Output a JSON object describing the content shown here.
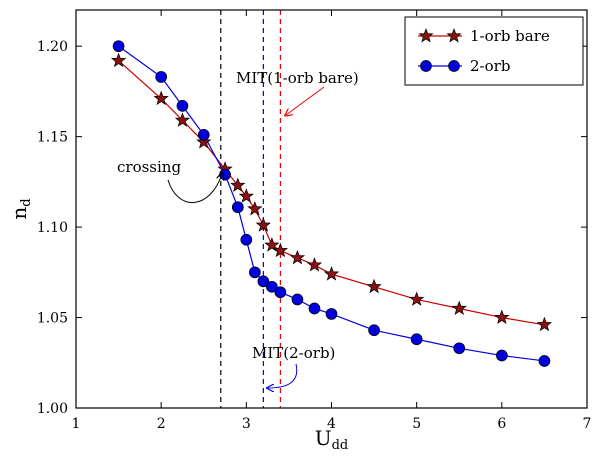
{
  "chart_data": {
    "type": "line",
    "xlabel": "U",
    "xlabel_sub": "dd",
    "ylabel": "n",
    "ylabel_sub": "d",
    "xlim": [
      1,
      7
    ],
    "ylim": [
      1.0,
      1.22
    ],
    "xticks": [
      1,
      2,
      3,
      4,
      5,
      6,
      7
    ],
    "yticks": [
      1.0,
      1.05,
      1.1,
      1.15,
      1.2
    ],
    "ytick_labels": [
      "1.00",
      "1.05",
      "1.10",
      "1.15",
      "1.20"
    ],
    "grid": false,
    "legend_position": "top-right",
    "series": [
      {
        "name": "1-orb bare",
        "color": "#cc0000",
        "marker_fill": "#8b1010",
        "marker": "star",
        "x": [
          1.5,
          2.0,
          2.25,
          2.5,
          2.75,
          2.9,
          3.0,
          3.1,
          3.2,
          3.3,
          3.4,
          3.6,
          3.8,
          4.0,
          4.5,
          5.0,
          5.5,
          6.0,
          6.5
        ],
        "y": [
          1.192,
          1.171,
          1.159,
          1.147,
          1.132,
          1.123,
          1.117,
          1.11,
          1.101,
          1.09,
          1.087,
          1.083,
          1.079,
          1.074,
          1.067,
          1.06,
          1.055,
          1.05,
          1.046
        ]
      },
      {
        "name": "2-orb",
        "color": "#0000dd",
        "marker_fill": "#0000dd",
        "marker": "circle",
        "x": [
          1.5,
          2.0,
          2.25,
          2.5,
          2.75,
          2.9,
          3.0,
          3.1,
          3.2,
          3.3,
          3.4,
          3.6,
          3.8,
          4.0,
          4.5,
          5.0,
          5.5,
          6.0,
          6.5
        ],
        "y": [
          1.2,
          1.183,
          1.167,
          1.151,
          1.129,
          1.111,
          1.093,
          1.075,
          1.07,
          1.067,
          1.064,
          1.06,
          1.055,
          1.052,
          1.043,
          1.038,
          1.033,
          1.029,
          1.026
        ]
      }
    ],
    "vlines": [
      {
        "x": 2.7,
        "color": "#000000"
      },
      {
        "x": 3.2,
        "color": "#0000dd"
      },
      {
        "x": 3.4,
        "color": "#ee0000"
      }
    ],
    "annotations": [
      {
        "text": "crossing"
      },
      {
        "text": "MIT(1-orb bare)"
      },
      {
        "text": "MIT(2-orb)"
      }
    ]
  }
}
